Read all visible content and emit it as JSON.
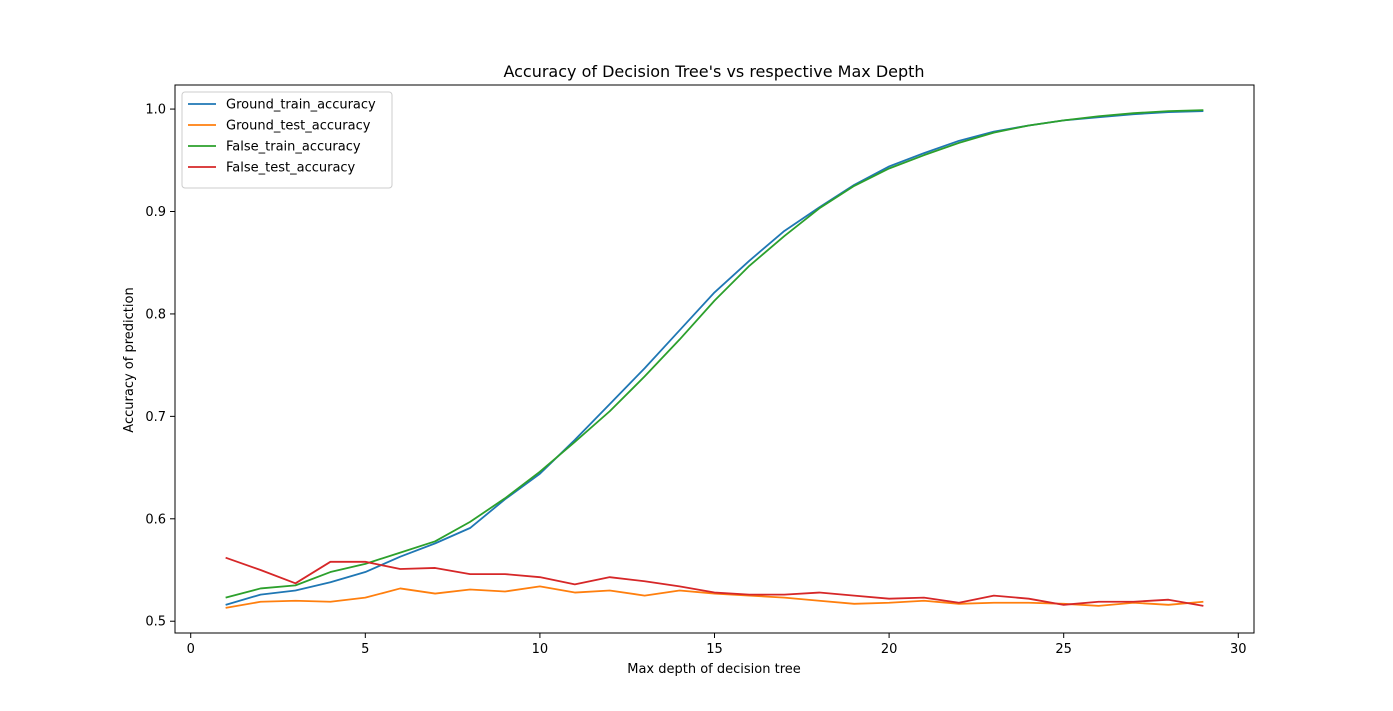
{
  "chart_data": {
    "type": "line",
    "title": "Accuracy of Decision Tree's vs respective Max Depth",
    "xlabel": "Max depth of decision tree",
    "ylabel": "Accuracy of prediction",
    "xlim": [
      -0.45,
      30.45
    ],
    "ylim": [
      0.4885,
      1.0235
    ],
    "xticks": [
      0,
      5,
      10,
      15,
      20,
      25,
      30
    ],
    "yticks": [
      0.5,
      0.6,
      0.7,
      0.8,
      0.9,
      1.0
    ],
    "xtick_labels": [
      "0",
      "5",
      "10",
      "15",
      "20",
      "25",
      "30"
    ],
    "ytick_labels": [
      "0.5",
      "0.6",
      "0.7",
      "0.8",
      "0.9",
      "1.0"
    ],
    "grid": false,
    "legend_position": "upper-left",
    "x": [
      1,
      2,
      3,
      4,
      5,
      6,
      7,
      8,
      9,
      10,
      11,
      12,
      13,
      14,
      15,
      16,
      17,
      18,
      19,
      20,
      21,
      22,
      23,
      24,
      25,
      26,
      27,
      28,
      29
    ],
    "series": [
      {
        "name": "Ground_train_accuracy",
        "color": "#1f77b4",
        "values": [
          0.516,
          0.526,
          0.53,
          0.538,
          0.548,
          0.563,
          0.576,
          0.591,
          0.619,
          0.644,
          0.677,
          0.712,
          0.747,
          0.784,
          0.821,
          0.852,
          0.881,
          0.904,
          0.926,
          0.944,
          0.957,
          0.969,
          0.978,
          0.984,
          0.989,
          0.992,
          0.995,
          0.997,
          0.998
        ]
      },
      {
        "name": "Ground_test_accuracy",
        "color": "#ff7f0e",
        "values": [
          0.513,
          0.519,
          0.52,
          0.519,
          0.523,
          0.532,
          0.527,
          0.531,
          0.529,
          0.534,
          0.528,
          0.53,
          0.525,
          0.53,
          0.527,
          0.525,
          0.523,
          0.52,
          0.517,
          0.518,
          0.52,
          0.517,
          0.518,
          0.518,
          0.517,
          0.515,
          0.518,
          0.516,
          0.519
        ]
      },
      {
        "name": "False_train_accuracy",
        "color": "#2ca02c",
        "values": [
          0.523,
          0.532,
          0.535,
          0.548,
          0.556,
          0.567,
          0.578,
          0.597,
          0.62,
          0.646,
          0.675,
          0.705,
          0.739,
          0.775,
          0.813,
          0.847,
          0.876,
          0.903,
          0.925,
          0.942,
          0.955,
          0.967,
          0.977,
          0.984,
          0.989,
          0.993,
          0.996,
          0.998,
          0.999
        ]
      },
      {
        "name": "False_test_accuracy",
        "color": "#d62728",
        "values": [
          0.562,
          0.55,
          0.537,
          0.558,
          0.558,
          0.551,
          0.552,
          0.546,
          0.546,
          0.543,
          0.536,
          0.543,
          0.539,
          0.534,
          0.528,
          0.526,
          0.526,
          0.528,
          0.525,
          0.522,
          0.523,
          0.518,
          0.525,
          0.522,
          0.516,
          0.519,
          0.519,
          0.521,
          0.515
        ]
      }
    ]
  }
}
